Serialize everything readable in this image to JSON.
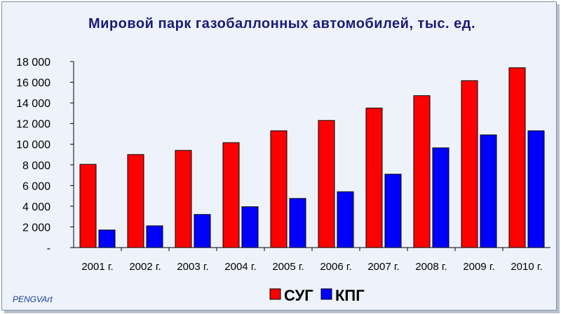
{
  "chart_data": {
    "type": "bar",
    "title": "Мировой парк газобаллонных автомобилей, тыс. ед.",
    "categories": [
      "2001 г.",
      "2002 г.",
      "2003 г.",
      "2004 г.",
      "2005 г.",
      "2006 г.",
      "2007 г.",
      "2008 г.",
      "2009 г.",
      "2010 г."
    ],
    "series": [
      {
        "name": "СУГ",
        "color": "#ff0000",
        "values": [
          8050,
          9000,
          9400,
          10150,
          11300,
          12300,
          13500,
          14700,
          16150,
          17400
        ]
      },
      {
        "name": "КПГ",
        "color": "#0000ff",
        "values": [
          1700,
          2100,
          3200,
          3950,
          4750,
          5400,
          7100,
          9650,
          10900,
          11300
        ]
      }
    ],
    "yticks": [
      "-",
      "2 000",
      "4 000",
      "6 000",
      "8 000",
      "10 000",
      "12 000",
      "14 000",
      "16 000",
      "18 000"
    ],
    "ylim": [
      0,
      18000
    ],
    "ystep": 2000,
    "grid": false,
    "legend_position": "bottom"
  },
  "watermark": "PENGVArt"
}
